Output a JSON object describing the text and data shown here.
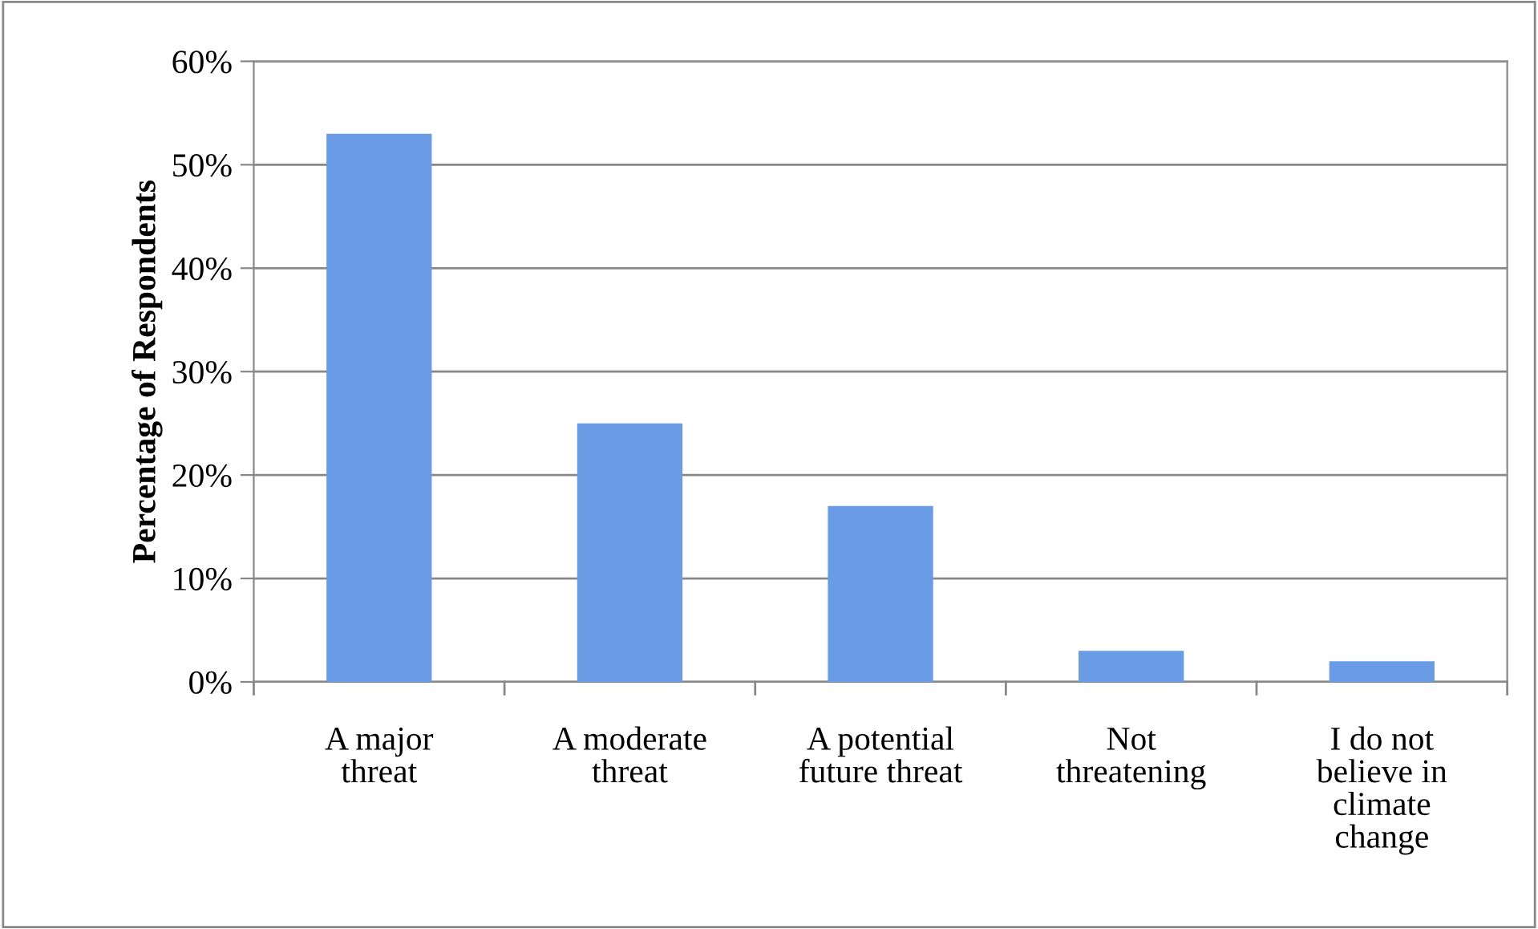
{
  "chart_data": {
    "type": "bar",
    "ylabel": "Percentage of Respondents",
    "categories": [
      "A major\nthreat",
      "A moderate\nthreat",
      "A potential\nfuture threat",
      "Not\nthreatening",
      "I do not\nbelieve in\nclimate\nchange"
    ],
    "values": [
      53,
      25,
      17,
      3,
      2
    ],
    "color": "#6a9ce6",
    "ylim": [
      0,
      60
    ],
    "yticks": [
      {
        "value": 0,
        "label": "0%"
      },
      {
        "value": 10,
        "label": "10%"
      },
      {
        "value": 20,
        "label": "20%"
      },
      {
        "value": 30,
        "label": "30%"
      },
      {
        "value": 40,
        "label": "40%"
      },
      {
        "value": 50,
        "label": "50%"
      },
      {
        "value": 60,
        "label": "60%"
      }
    ],
    "grid": "y",
    "legend": false
  }
}
